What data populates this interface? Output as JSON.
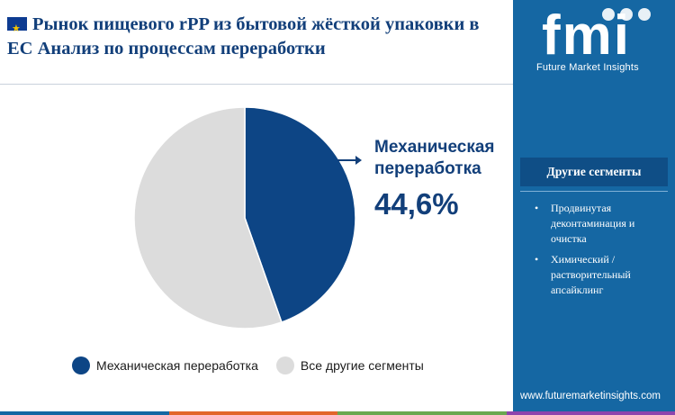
{
  "header": {
    "flag_icon": "eu-flag-icon",
    "title": "Рынок пищевого rPP из бытовой жёсткой упаковки в ЕС Анализ по процессам переработки"
  },
  "colors": {
    "primary": "#0d4585",
    "secondary": "#dcdcdc",
    "sidebar": "#1567a3",
    "sidebar_dark": "#0f4e86",
    "accent_bar": [
      "#1567a3",
      "#e2662a",
      "#6aa84f",
      "#8e44ad"
    ]
  },
  "chart_data": {
    "type": "pie",
    "categories": [
      "Механическая переработка",
      "Все другие сегменты"
    ],
    "values": [
      44.6,
      55.4
    ],
    "colors": [
      "#0d4585",
      "#dcdcdc"
    ],
    "callout": {
      "label": "Механическая переработка",
      "value": "44,6%"
    },
    "legend_position": "bottom"
  },
  "legend": {
    "items": [
      {
        "label": "Механическая переработка",
        "color": "#0d4585"
      },
      {
        "label": "Все другие сегменты",
        "color": "#dcdcdc"
      }
    ]
  },
  "sidebar": {
    "logo_text": "fmi",
    "brand_name": "Future Market Insights",
    "segments_title": "Другие сегменты",
    "segments": [
      "Продвинутая деконтаминация и очистка",
      "Химический / растворительный апсайклинг"
    ],
    "website": "www.futuremarketinsights.com"
  }
}
